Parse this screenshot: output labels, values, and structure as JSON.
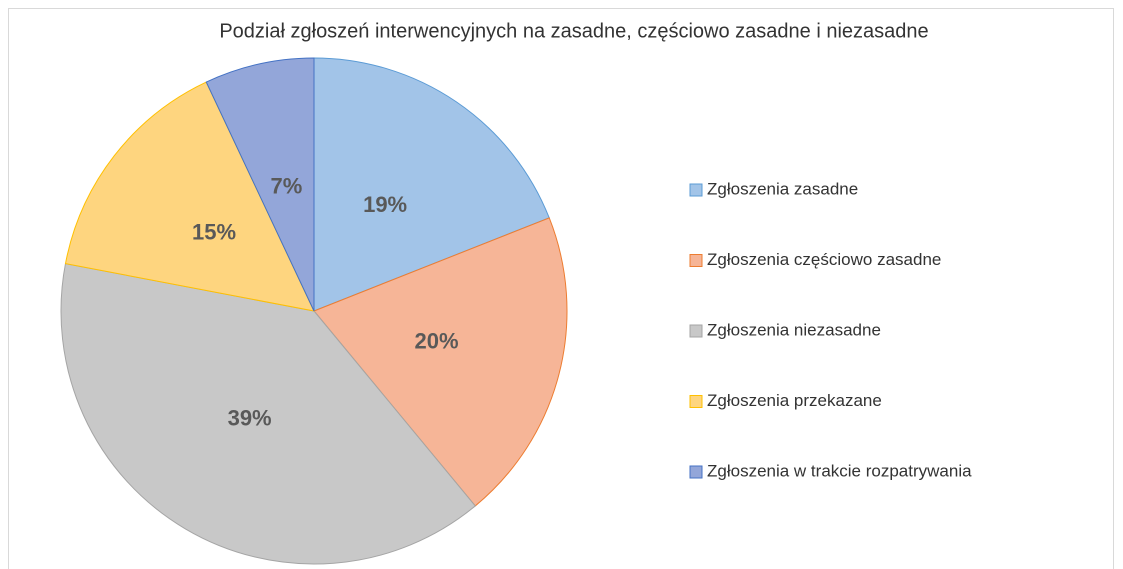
{
  "chart_data": {
    "type": "pie",
    "title": "Podział zgłoszeń interwencyjnych na zasadne, częściowo zasadne i niezasadne",
    "categories": [
      "Zgłoszenia zasadne",
      "Zgłoszenia częściowo zasadne",
      "Zgłoszenia niezasadne",
      "Zgłoszenia przekazane",
      "Zgłoszenia w trakcie rozpatrywania"
    ],
    "values": [
      19,
      20,
      39,
      15,
      7
    ],
    "value_labels": [
      "19%",
      "20%",
      "39%",
      "15%",
      "7%"
    ],
    "colors": [
      "#a2c4e8",
      "#f6b597",
      "#c8c8c8",
      "#fed57f",
      "#93a6d9"
    ],
    "legend": "right"
  }
}
